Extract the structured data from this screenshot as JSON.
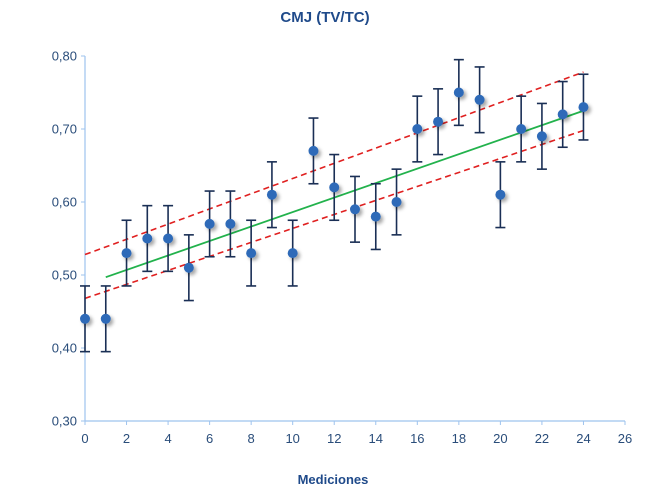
{
  "chart_data": {
    "type": "scatter",
    "title": "CMJ (TV/TC)",
    "xlabel": "Mediciones",
    "ylabel": "",
    "xlim": [
      0,
      26
    ],
    "ylim": [
      0.3,
      0.8
    ],
    "x_ticks": [
      0,
      2,
      4,
      6,
      8,
      10,
      12,
      14,
      16,
      18,
      20,
      22,
      24,
      26
    ],
    "y_ticks": [
      "0,30",
      "0,40",
      "0,50",
      "0,60",
      "0,70",
      "0,80"
    ],
    "y_tick_values": [
      0.3,
      0.4,
      0.5,
      0.6,
      0.7,
      0.8
    ],
    "grid": false,
    "series": [
      {
        "name": "Mediciones",
        "x": [
          0,
          1,
          2,
          3,
          4,
          5,
          6,
          7,
          8,
          9,
          10,
          11,
          12,
          13,
          14,
          15,
          16,
          17,
          18,
          19,
          20,
          21,
          22,
          23,
          24
        ],
        "y": [
          0.44,
          0.44,
          0.53,
          0.55,
          0.55,
          0.51,
          0.57,
          0.57,
          0.53,
          0.61,
          0.53,
          0.67,
          0.62,
          0.59,
          0.58,
          0.6,
          0.7,
          0.71,
          0.75,
          0.74,
          0.61,
          0.7,
          0.69,
          0.72,
          0.73
        ],
        "error": 0.045,
        "color": "#2e6bb8",
        "errorbar_color": "#1a2f55"
      }
    ],
    "trend_line": {
      "x": [
        1,
        24
      ],
      "y": [
        0.497,
        0.725
      ],
      "color": "#22b24c"
    },
    "confidence_band": {
      "upper": {
        "x": [
          0,
          24
        ],
        "y": [
          0.528,
          0.778
        ]
      },
      "lower": {
        "x": [
          0,
          24
        ],
        "y": [
          0.468,
          0.698
        ]
      },
      "color": "#e02020",
      "style": "dashed"
    },
    "axis_color": "#9ec3ee"
  }
}
